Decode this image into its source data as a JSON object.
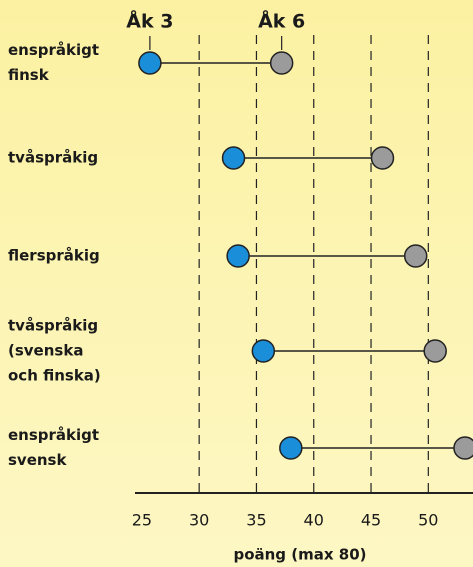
{
  "chart_data": {
    "type": "dumbbell",
    "x_label": "poäng (max 80)",
    "categories": [
      [
        "enspråkigt",
        "finsk"
      ],
      [
        "tvåspråkig"
      ],
      [
        "flerspråkig"
      ],
      [
        "tvåspråkig",
        "(svenska",
        "och finska)"
      ],
      [
        "enspråkigt",
        "svensk"
      ]
    ],
    "series": [
      {
        "name": "Åk 3",
        "color": "#1a8ed8",
        "values": [
          25.7,
          33.0,
          33.4,
          35.6,
          38.0
        ]
      },
      {
        "name": "Åk 6",
        "color": "#9b9b9b",
        "values": [
          37.2,
          46.0,
          48.9,
          50.6,
          53.2
        ]
      }
    ],
    "xlim": [
      24.4,
      53.9
    ],
    "xticks": [
      25,
      30,
      35,
      40,
      45,
      50
    ],
    "grid": true
  }
}
